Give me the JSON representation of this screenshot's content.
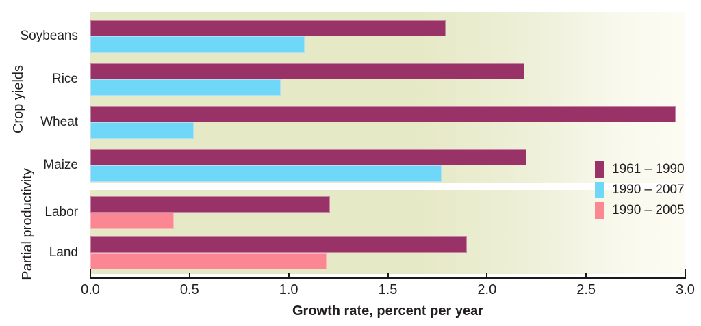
{
  "chart_data": {
    "type": "bar",
    "orientation": "horizontal",
    "title": "",
    "xlabel": "Growth rate, percent per year",
    "ylabel_groups": [
      "Crop yields",
      "Partial productivity"
    ],
    "xlim": [
      0,
      3
    ],
    "xticks": [
      "0.0",
      "0.5",
      "1.0",
      "1.5",
      "2.0",
      "2.5",
      "3.0"
    ],
    "grid": false,
    "legend_position": "right-inside",
    "legend": [
      {
        "label": "1961 – 1990",
        "color": "#993266"
      },
      {
        "label": "1990 – 2007",
        "color": "#6fd8f8"
      },
      {
        "label": "1990 – 2005",
        "color": "#fb8793"
      }
    ],
    "groups": [
      {
        "category": "Soybeans",
        "section": "Crop yields",
        "bars": [
          {
            "period": "1961 – 1990",
            "value": 1.79
          },
          {
            "period": "1990 – 2007",
            "value": 1.08
          }
        ]
      },
      {
        "category": "Rice",
        "section": "Crop yields",
        "bars": [
          {
            "period": "1961 – 1990",
            "value": 2.19
          },
          {
            "period": "1990 – 2007",
            "value": 0.96
          }
        ]
      },
      {
        "category": "Wheat",
        "section": "Crop yields",
        "bars": [
          {
            "period": "1961 – 1990",
            "value": 2.95
          },
          {
            "period": "1990 – 2007",
            "value": 0.52
          }
        ]
      },
      {
        "category": "Maize",
        "section": "Crop yields",
        "bars": [
          {
            "period": "1961 – 1990",
            "value": 2.2
          },
          {
            "period": "1990 – 2007",
            "value": 1.77
          }
        ]
      },
      {
        "category": "Labor",
        "section": "Partial productivity",
        "bars": [
          {
            "period": "1961 – 1990",
            "value": 1.21
          },
          {
            "period": "1990 – 2005",
            "value": 0.42
          }
        ]
      },
      {
        "category": "Land",
        "section": "Partial productivity",
        "bars": [
          {
            "period": "1961 – 1990",
            "value": 1.9
          },
          {
            "period": "1990 – 2005",
            "value": 1.19
          }
        ]
      }
    ],
    "colors": {
      "plot_background_left": "#e6e9c5",
      "plot_background_right": "#fdfcf4",
      "section_separator": "#ffffff",
      "axis": "#1a1a1a",
      "text": "#231f20"
    }
  }
}
